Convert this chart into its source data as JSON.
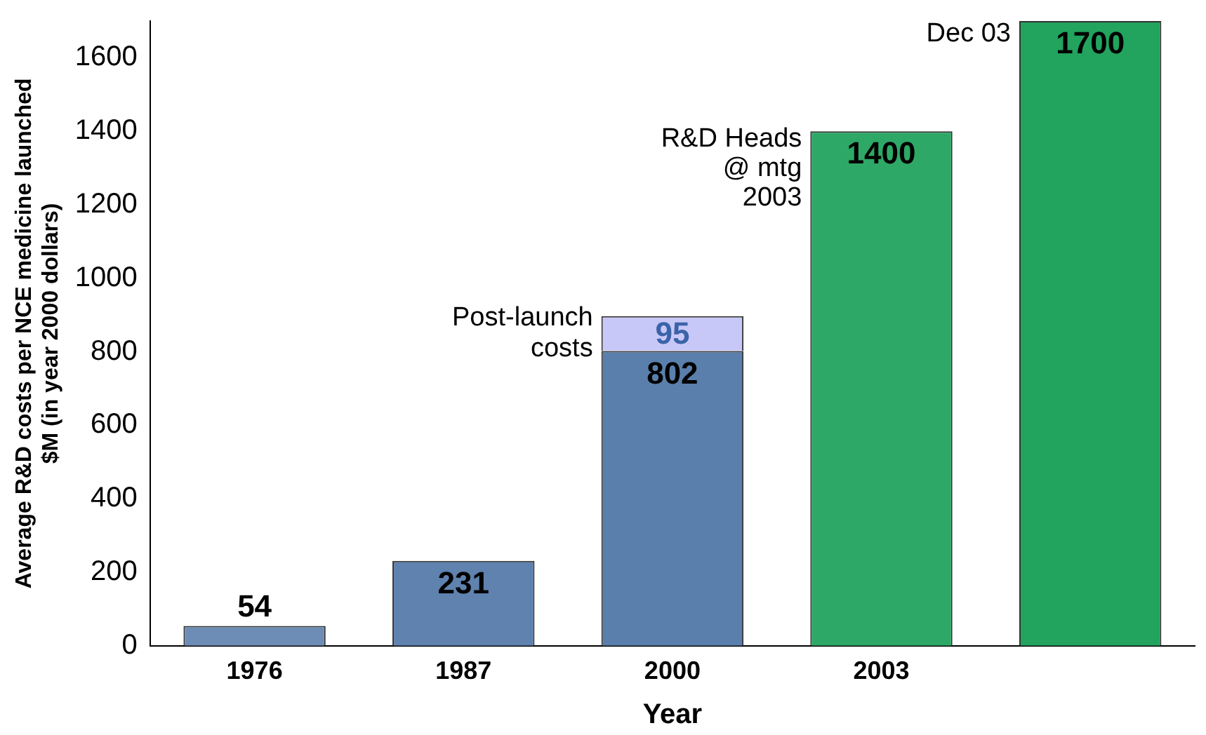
{
  "chart_data": {
    "type": "bar",
    "stacked": true,
    "xlabel": "Year",
    "ylabel": "Average R&D costs per NCE medicine launched\n$M (in year 2000 dollars)",
    "categories": [
      "1976",
      "1987",
      "2000",
      "2003",
      null
    ],
    "series": [
      {
        "colors": [
          "#6d8db6",
          "#5f82ae",
          "#5a7fac",
          "#2ea866",
          "#22a35e"
        ],
        "values": [
          54,
          231,
          802,
          1400,
          1700
        ]
      },
      {
        "name": "Post-launch costs",
        "color": "#c8c8f8",
        "values": [
          null,
          null,
          95,
          null,
          null
        ]
      }
    ],
    "ylim": [
      0,
      1700
    ],
    "yticks": [
      0,
      200,
      400,
      600,
      800,
      1000,
      1200,
      1400,
      1600
    ],
    "grid": false,
    "legend": false,
    "data_labels": true,
    "annotations": [
      {
        "text": "R&D Heads\n@ mtg\n2003",
        "x": "2003",
        "y": 1400
      },
      "Dec 03"
    ]
  }
}
